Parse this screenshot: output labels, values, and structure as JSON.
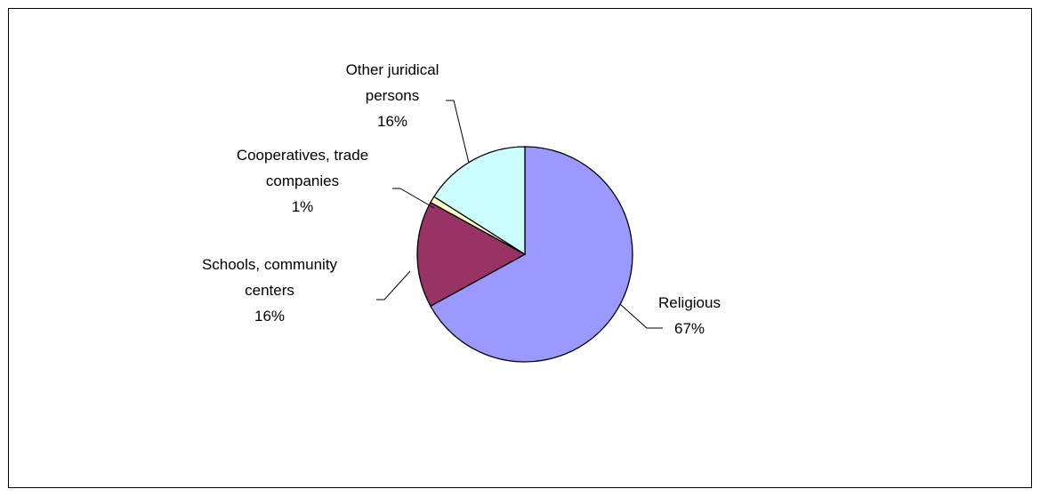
{
  "chart_data": {
    "type": "pie",
    "slices": [
      {
        "label_lines": [
          "Religious"
        ],
        "percent_label": "67%",
        "value": 67,
        "color": "#9999FF"
      },
      {
        "label_lines": [
          "Schools, community",
          "centers"
        ],
        "percent_label": "16%",
        "value": 16,
        "color": "#993366"
      },
      {
        "label_lines": [
          "Cooperatives, trade",
          "companies"
        ],
        "percent_label": "1%",
        "value": 1,
        "color": "#FFFFCC"
      },
      {
        "label_lines": [
          "Other juridical",
          "persons"
        ],
        "percent_label": "16%",
        "value": 16,
        "color": "#CCFFFF"
      }
    ],
    "start_angle_deg": 0,
    "direction": "clockwise",
    "legend": "none",
    "slice_border_color": "#000000"
  }
}
